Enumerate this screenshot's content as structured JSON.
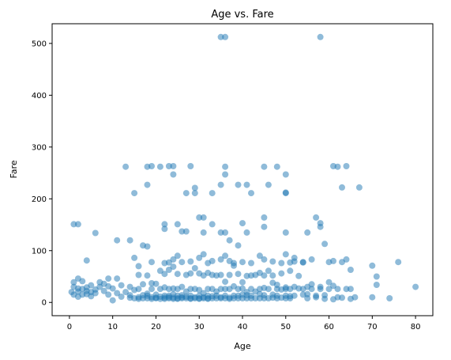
{
  "chart_data": {
    "type": "scatter",
    "title": "Age vs. Fare",
    "xlabel": "Age",
    "ylabel": "Fare",
    "xlim": [
      -4,
      84
    ],
    "ylim": [
      -25.6,
      538
    ],
    "xticks": [
      0,
      10,
      20,
      30,
      40,
      50,
      60,
      70,
      80
    ],
    "yticks": [
      0,
      100,
      200,
      300,
      400,
      500
    ],
    "grid": false,
    "point_color": "#1f77b4",
    "point_alpha": 0.5,
    "series": [
      {
        "points": [
          [
            35,
            512.3
          ],
          [
            36,
            512.3
          ],
          [
            58,
            512.3
          ],
          [
            13,
            262
          ],
          [
            18,
            262
          ],
          [
            19,
            263
          ],
          [
            21,
            262
          ],
          [
            23,
            263
          ],
          [
            24,
            263
          ],
          [
            24,
            247
          ],
          [
            28,
            263
          ],
          [
            36,
            262
          ],
          [
            45,
            262
          ],
          [
            48,
            262
          ],
          [
            50,
            247
          ],
          [
            61,
            263
          ],
          [
            62,
            262
          ],
          [
            64,
            263
          ],
          [
            15,
            211
          ],
          [
            18,
            227
          ],
          [
            27,
            211
          ],
          [
            29,
            221
          ],
          [
            29,
            211
          ],
          [
            33,
            211
          ],
          [
            35,
            227
          ],
          [
            36,
            247
          ],
          [
            39,
            227
          ],
          [
            41,
            227
          ],
          [
            42,
            211
          ],
          [
            46,
            227
          ],
          [
            50,
            211
          ],
          [
            50,
            212
          ],
          [
            63,
            222
          ],
          [
            67,
            222
          ],
          [
            1,
            151
          ],
          [
            2,
            151
          ],
          [
            6,
            134
          ],
          [
            11,
            120
          ],
          [
            14,
            120
          ],
          [
            22,
            151
          ],
          [
            22,
            142
          ],
          [
            25,
            151
          ],
          [
            26,
            137
          ],
          [
            27,
            137
          ],
          [
            30,
            164
          ],
          [
            31,
            164
          ],
          [
            31,
            135
          ],
          [
            33,
            151
          ],
          [
            35,
            135
          ],
          [
            36,
            135
          ],
          [
            40,
            153
          ],
          [
            41,
            135
          ],
          [
            45,
            164
          ],
          [
            45,
            146
          ],
          [
            50,
            135
          ],
          [
            55,
            135
          ],
          [
            57,
            164
          ],
          [
            58,
            153
          ],
          [
            58,
            146
          ],
          [
            59,
            113
          ],
          [
            39,
            110
          ],
          [
            37,
            120
          ],
          [
            17,
            110
          ],
          [
            18,
            108
          ],
          [
            60,
            78
          ],
          [
            61,
            80
          ],
          [
            64,
            83
          ],
          [
            63,
            78
          ],
          [
            65,
            63
          ],
          [
            4,
            81
          ],
          [
            15,
            86
          ],
          [
            16,
            70
          ],
          [
            19,
            78
          ],
          [
            22,
            76
          ],
          [
            23,
            77
          ],
          [
            24,
            83
          ],
          [
            25,
            90
          ],
          [
            26,
            78
          ],
          [
            28,
            79
          ],
          [
            30,
            86
          ],
          [
            31,
            93
          ],
          [
            32,
            76
          ],
          [
            33,
            80
          ],
          [
            35,
            83
          ],
          [
            36,
            90
          ],
          [
            37,
            80
          ],
          [
            38,
            76
          ],
          [
            40,
            78
          ],
          [
            42,
            76
          ],
          [
            44,
            90
          ],
          [
            45,
            83
          ],
          [
            47,
            79
          ],
          [
            49,
            76
          ],
          [
            50,
            93
          ],
          [
            51,
            77
          ],
          [
            52,
            86
          ],
          [
            54,
            78
          ],
          [
            56,
            83
          ],
          [
            70,
            71
          ],
          [
            71,
            50
          ],
          [
            76,
            78
          ],
          [
            80,
            30
          ],
          [
            74,
            8
          ],
          [
            70,
            10
          ],
          [
            71,
            34
          ],
          [
            0.5,
            20
          ],
          [
            1,
            15
          ],
          [
            1,
            30
          ],
          [
            1,
            39
          ],
          [
            2,
            11
          ],
          [
            2,
            21
          ],
          [
            2,
            27
          ],
          [
            2,
            46
          ],
          [
            3,
            15
          ],
          [
            3,
            26
          ],
          [
            3,
            41
          ],
          [
            4,
            16
          ],
          [
            4,
            22
          ],
          [
            4,
            29
          ],
          [
            5,
            12
          ],
          [
            5,
            20
          ],
          [
            5,
            33
          ],
          [
            6,
            18
          ],
          [
            6,
            25
          ],
          [
            7,
            30
          ],
          [
            7,
            39
          ],
          [
            8,
            22
          ],
          [
            8,
            36
          ],
          [
            9,
            15
          ],
          [
            9,
            31
          ],
          [
            9,
            46
          ],
          [
            10,
            27
          ],
          [
            10,
            4
          ],
          [
            11,
            18
          ],
          [
            11,
            46
          ],
          [
            12,
            11
          ],
          [
            12,
            33
          ],
          [
            13,
            20
          ],
          [
            14,
            9
          ],
          [
            14,
            14
          ],
          [
            14,
            30
          ],
          [
            15,
            8
          ],
          [
            15,
            24
          ],
          [
            16,
            7
          ],
          [
            16,
            10
          ],
          [
            16,
            26
          ],
          [
            16,
            53
          ],
          [
            17,
            8
          ],
          [
            17,
            14
          ],
          [
            17,
            35
          ],
          [
            18,
            8
          ],
          [
            18,
            13
          ],
          [
            18,
            17
          ],
          [
            18,
            52
          ],
          [
            19,
            7
          ],
          [
            19,
            10
          ],
          [
            19,
            26
          ],
          [
            19,
            37
          ],
          [
            20,
            8
          ],
          [
            20,
            9
          ],
          [
            20,
            15
          ],
          [
            20,
            36
          ],
          [
            21,
            7
          ],
          [
            21,
            11
          ],
          [
            21,
            26
          ],
          [
            21,
            61
          ],
          [
            22,
            7
          ],
          [
            22,
            9
          ],
          [
            22,
            13
          ],
          [
            22,
            29
          ],
          [
            22,
            55
          ],
          [
            23,
            8
          ],
          [
            23,
            10
          ],
          [
            23,
            13
          ],
          [
            23,
            26
          ],
          [
            23,
            63
          ],
          [
            24,
            7
          ],
          [
            24,
            9
          ],
          [
            24,
            16
          ],
          [
            24,
            27
          ],
          [
            24,
            69
          ],
          [
            25,
            7
          ],
          [
            25,
            8
          ],
          [
            25,
            13
          ],
          [
            25,
            26
          ],
          [
            25,
            55
          ],
          [
            26,
            8
          ],
          [
            26,
            10
          ],
          [
            26,
            14
          ],
          [
            26,
            30
          ],
          [
            27,
            8
          ],
          [
            27,
            11
          ],
          [
            27,
            21
          ],
          [
            27,
            53
          ],
          [
            28,
            7
          ],
          [
            28,
            8
          ],
          [
            28,
            13
          ],
          [
            28,
            26
          ],
          [
            28,
            56
          ],
          [
            29,
            8
          ],
          [
            29,
            10
          ],
          [
            29,
            26
          ],
          [
            29,
            66
          ],
          [
            30,
            7
          ],
          [
            30,
            8
          ],
          [
            30,
            13
          ],
          [
            30,
            24
          ],
          [
            30,
            56
          ],
          [
            31,
            8
          ],
          [
            31,
            10
          ],
          [
            31,
            18
          ],
          [
            31,
            52
          ],
          [
            32,
            7
          ],
          [
            32,
            8
          ],
          [
            32,
            13
          ],
          [
            32,
            26
          ],
          [
            32,
            57
          ],
          [
            33,
            8
          ],
          [
            33,
            12
          ],
          [
            33,
            26
          ],
          [
            33,
            53
          ],
          [
            34,
            8
          ],
          [
            34,
            13
          ],
          [
            34,
            21
          ],
          [
            34,
            52
          ],
          [
            35,
            8
          ],
          [
            35,
            10
          ],
          [
            35,
            26
          ],
          [
            35,
            53
          ],
          [
            36,
            8
          ],
          [
            36,
            13
          ],
          [
            36,
            26
          ],
          [
            36,
            40
          ],
          [
            37,
            7
          ],
          [
            37,
            9
          ],
          [
            37,
            26
          ],
          [
            37,
            53
          ],
          [
            38,
            8
          ],
          [
            38,
            13
          ],
          [
            38,
            31
          ],
          [
            38,
            71
          ],
          [
            39,
            8
          ],
          [
            39,
            13
          ],
          [
            39,
            26
          ],
          [
            39,
            55
          ],
          [
            40,
            8
          ],
          [
            40,
            15
          ],
          [
            40,
            27
          ],
          [
            40,
            39
          ],
          [
            41,
            8
          ],
          [
            41,
            14
          ],
          [
            41,
            20
          ],
          [
            41,
            51
          ],
          [
            42,
            8
          ],
          [
            42,
            13
          ],
          [
            42,
            26
          ],
          [
            42,
            52
          ],
          [
            43,
            8
          ],
          [
            43,
            21
          ],
          [
            43,
            53
          ],
          [
            44,
            8
          ],
          [
            44,
            16
          ],
          [
            44,
            26
          ],
          [
            44,
            57
          ],
          [
            45,
            8
          ],
          [
            45,
            14
          ],
          [
            45,
            28
          ],
          [
            45,
            52
          ],
          [
            46,
            8
          ],
          [
            46,
            26
          ],
          [
            46,
            61
          ],
          [
            47,
            9
          ],
          [
            47,
            15
          ],
          [
            47,
            38
          ],
          [
            47,
            52
          ],
          [
            48,
            8
          ],
          [
            48,
            13
          ],
          [
            48,
            26
          ],
          [
            48,
            34
          ],
          [
            49,
            9
          ],
          [
            49,
            25
          ],
          [
            49,
            56
          ],
          [
            50,
            8
          ],
          [
            50,
            13
          ],
          [
            50,
            26
          ],
          [
            50,
            29
          ],
          [
            51,
            8
          ],
          [
            51,
            12
          ],
          [
            51,
            26
          ],
          [
            51,
            61
          ],
          [
            52,
            13
          ],
          [
            52,
            30
          ],
          [
            52,
            79
          ],
          [
            53,
            27
          ],
          [
            53,
            51
          ],
          [
            54,
            15
          ],
          [
            54,
            26
          ],
          [
            54,
            77
          ],
          [
            55,
            8
          ],
          [
            55,
            16
          ],
          [
            55,
            30
          ],
          [
            56,
            26
          ],
          [
            56,
            35
          ],
          [
            57,
            10
          ],
          [
            57,
            13
          ],
          [
            58,
            30
          ],
          [
            58,
            26
          ],
          [
            59,
            7
          ],
          [
            59,
            14
          ],
          [
            60,
            26
          ],
          [
            60,
            39
          ],
          [
            61,
            6
          ],
          [
            61,
            32
          ],
          [
            62,
            10
          ],
          [
            62,
            26
          ],
          [
            63,
            9
          ],
          [
            64,
            26
          ],
          [
            65,
            7
          ],
          [
            65,
            26
          ],
          [
            66,
            10
          ]
        ]
      }
    ]
  }
}
